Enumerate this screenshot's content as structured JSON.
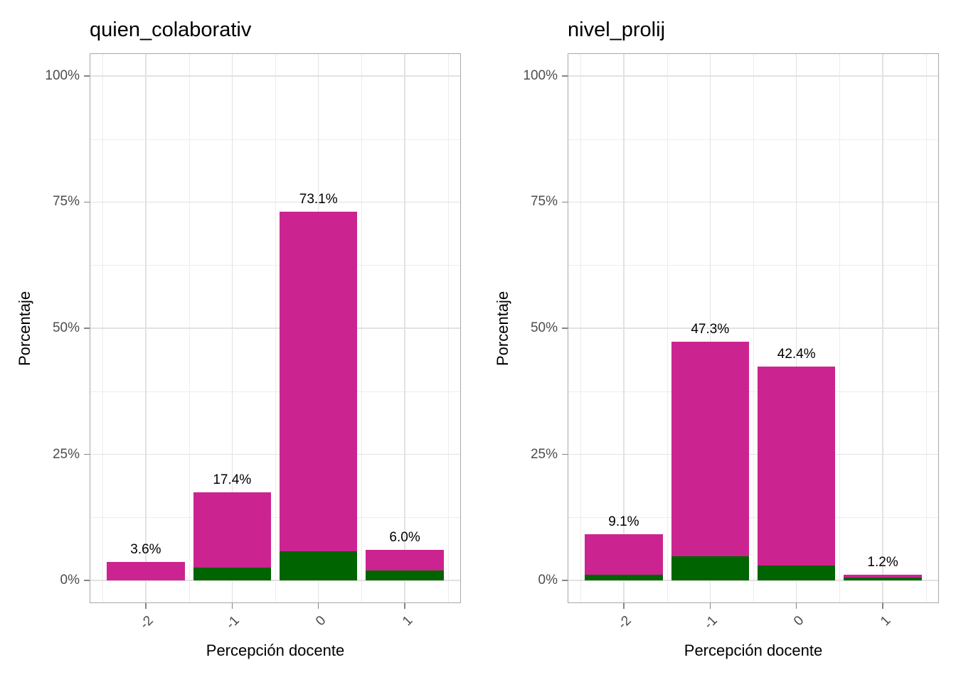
{
  "style": {
    "bar_fill_top": "#CB2490",
    "bar_fill_bottom": "#006400",
    "grid_major": "#E2E2E2",
    "grid_minor": "#EDEDED",
    "panel_border": "#A8A8A8",
    "tick_mark": "#858585",
    "axis_text": "#4D4D4D",
    "title_color": "#000000",
    "background": "#FFFFFF"
  },
  "chart_data": [
    {
      "type": "bar",
      "stacked": true,
      "legend": "none",
      "grid": true,
      "title": "quien_colaborativ",
      "xlabel": "Percepción docente",
      "ylabel": "Porcentaje",
      "categories": [
        "-2",
        "-1",
        "0",
        "1"
      ],
      "category_positions": [
        -2,
        -1,
        0,
        1
      ],
      "bar_width_units": 0.9,
      "series": [
        {
          "name": "bottom-segment-green",
          "color": "#006400",
          "values": [
            0,
            2.6,
            5.8,
            2.0
          ]
        },
        {
          "name": "top-segment-magenta",
          "color": "#CB2490",
          "values": [
            3.6,
            14.8,
            67.3,
            4.0
          ]
        }
      ],
      "bar_totals": [
        3.6,
        17.4,
        73.1,
        6.0
      ],
      "bar_labels": [
        "3.6%",
        "17.4%",
        "73.1%",
        "6.0%"
      ],
      "y_axis": {
        "tick_values": [
          0,
          25,
          50,
          75,
          100
        ],
        "tick_labels": [
          "0%",
          "25%",
          "50%",
          "75%",
          "100%"
        ],
        "minor_tick_values": [
          12.5,
          37.5,
          62.5,
          87.5
        ],
        "range_shown": [
          -4.5,
          104.5
        ]
      },
      "x_axis": {
        "minor_positions": [
          -2.5,
          -1.5,
          -0.5,
          0.5,
          1.5
        ],
        "range_shown": [
          -2.65,
          1.65
        ]
      }
    },
    {
      "type": "bar",
      "stacked": true,
      "legend": "none",
      "grid": true,
      "title": "nivel_prolij",
      "xlabel": "Percepción docente",
      "ylabel": "Porcentaje",
      "categories": [
        "-2",
        "-1",
        "0",
        "1"
      ],
      "category_positions": [
        -2,
        -1,
        0,
        1
      ],
      "bar_width_units": 0.9,
      "series": [
        {
          "name": "bottom-segment-green",
          "color": "#006400",
          "values": [
            1.1,
            4.8,
            3.0,
            0.6
          ]
        },
        {
          "name": "top-segment-magenta",
          "color": "#CB2490",
          "values": [
            8.0,
            42.5,
            39.4,
            0.6
          ]
        }
      ],
      "bar_totals": [
        9.1,
        47.3,
        42.4,
        1.2
      ],
      "bar_labels": [
        "9.1%",
        "47.3%",
        "42.4%",
        "1.2%"
      ],
      "y_axis": {
        "tick_values": [
          0,
          25,
          50,
          75,
          100
        ],
        "tick_labels": [
          "0%",
          "25%",
          "50%",
          "75%",
          "100%"
        ],
        "minor_tick_values": [
          12.5,
          37.5,
          62.5,
          87.5
        ],
        "range_shown": [
          -4.5,
          104.5
        ]
      },
      "x_axis": {
        "minor_positions": [
          -2.5,
          -1.5,
          -0.5,
          0.5,
          1.5
        ],
        "range_shown": [
          -2.65,
          1.65
        ]
      }
    }
  ]
}
